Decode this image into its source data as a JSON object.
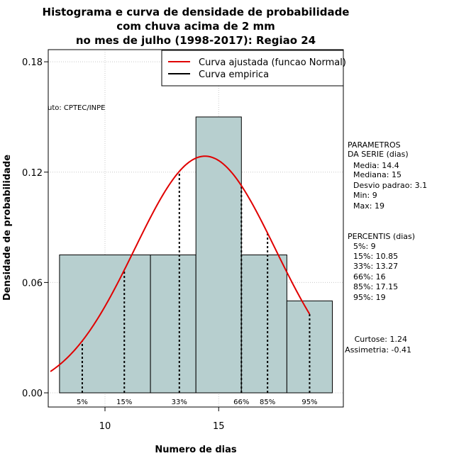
{
  "chart_data": {
    "type": "histogram",
    "title_lines": [
      "Histograma e curva de densidade de probabilidade",
      "com chuva acima de 2 mm",
      "no mes de julho (1998-2017): Regiao 24"
    ],
    "xlabel": "Numero de dias",
    "ylabel": "Densidade de probabilidade",
    "xlim": [
      7.6,
      20.4
    ],
    "ylim": [
      0,
      0.19
    ],
    "x_ticks": [
      10,
      15
    ],
    "x_tick_labels": [
      "10",
      "15"
    ],
    "y_ticks": [
      0.0,
      0.06,
      0.12,
      0.18
    ],
    "y_tick_labels": [
      "0.00",
      "0.06",
      "0.12",
      "0.18"
    ],
    "grid": true,
    "bins": [
      {
        "start": 8,
        "end": 12,
        "density": 0.075
      },
      {
        "start": 12,
        "end": 14,
        "density": 0.075
      },
      {
        "start": 14,
        "end": 16,
        "density": 0.15
      },
      {
        "start": 16,
        "end": 18,
        "density": 0.075
      },
      {
        "start": 18,
        "end": 20,
        "density": 0.05
      }
    ],
    "bar_color": "#b7cfcf",
    "fitted_normal": {
      "mean": 14.4,
      "sd": 3.1,
      "x_range": [
        7.6,
        19.0
      ],
      "color": "#e00000"
    },
    "percentile_lines": [
      {
        "label": "5%",
        "x": 9
      },
      {
        "label": "15%",
        "x": 10.85
      },
      {
        "label": "33%",
        "x": 13.27
      },
      {
        "label": "66%",
        "x": 16
      },
      {
        "label": "85%",
        "x": 17.15
      },
      {
        "label": "95%",
        "x": 19
      }
    ],
    "legend": [
      {
        "label": "Curva ajustada (funcao Normal)",
        "color": "#e00000"
      },
      {
        "label": "Curva empirica",
        "color": "#000000"
      }
    ],
    "source_note": "uto: CPTEC/INPE",
    "parametros": {
      "heading_lines": [
        "PARAMETROS",
        "DA SERIE (dias)"
      ],
      "items": [
        "Media: 14.4",
        "Mediana: 15",
        "Desvio padrao: 3.1",
        "Min: 9",
        "Max: 19"
      ]
    },
    "percentis": {
      "heading": "PERCENTIS (dias)",
      "items": [
        "5%: 9",
        "15%: 10.85",
        "33%: 13.27",
        "66%: 16",
        "85%: 17.15",
        "95%: 19"
      ]
    },
    "stats": [
      "Curtose: 1.24",
      "Assimetria: -0.41"
    ]
  }
}
